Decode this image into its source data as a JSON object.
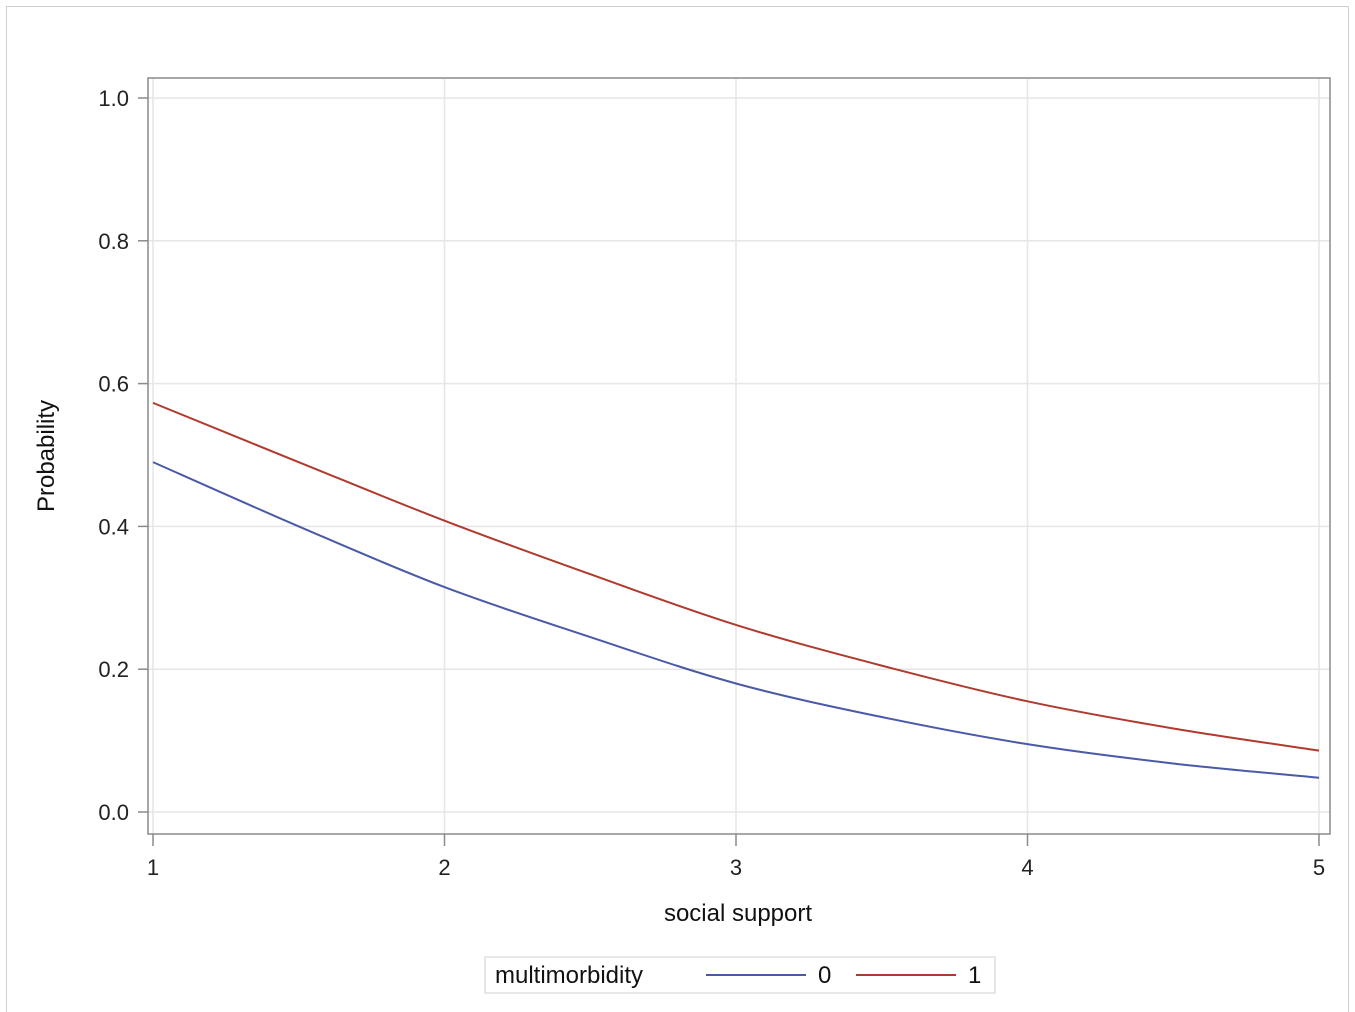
{
  "colors": {
    "series_0": "#4a5aa8",
    "series_1": "#b03a2e",
    "grid": "#e6e6e6",
    "axis": "#8a8a8a"
  },
  "chart_data": {
    "type": "line",
    "title": "",
    "xlabel": "social support",
    "ylabel": "Probability",
    "xlim": [
      1,
      5
    ],
    "ylim": [
      0.0,
      1.0
    ],
    "x_ticks": [
      1,
      2,
      3,
      4,
      5
    ],
    "y_ticks": [
      0.0,
      0.2,
      0.4,
      0.6,
      0.8,
      1.0
    ],
    "y_tick_labels": [
      "0.0",
      "0.2",
      "0.4",
      "0.6",
      "0.8",
      "1.0"
    ],
    "grid": true,
    "legend": {
      "title": "multimorbidity",
      "placement": "bottom"
    },
    "series": [
      {
        "name": "0",
        "x": [
          1,
          1.5,
          2,
          2.5,
          3,
          3.5,
          4,
          4.5,
          5
        ],
        "y": [
          0.49,
          0.4,
          0.315,
          0.245,
          0.18,
          0.133,
          0.095,
          0.068,
          0.048
        ]
      },
      {
        "name": "1",
        "x": [
          1,
          1.5,
          2,
          2.5,
          3,
          3.5,
          4,
          4.5,
          5
        ],
        "y": [
          0.573,
          0.49,
          0.408,
          0.333,
          0.262,
          0.205,
          0.155,
          0.117,
          0.086
        ]
      }
    ]
  }
}
